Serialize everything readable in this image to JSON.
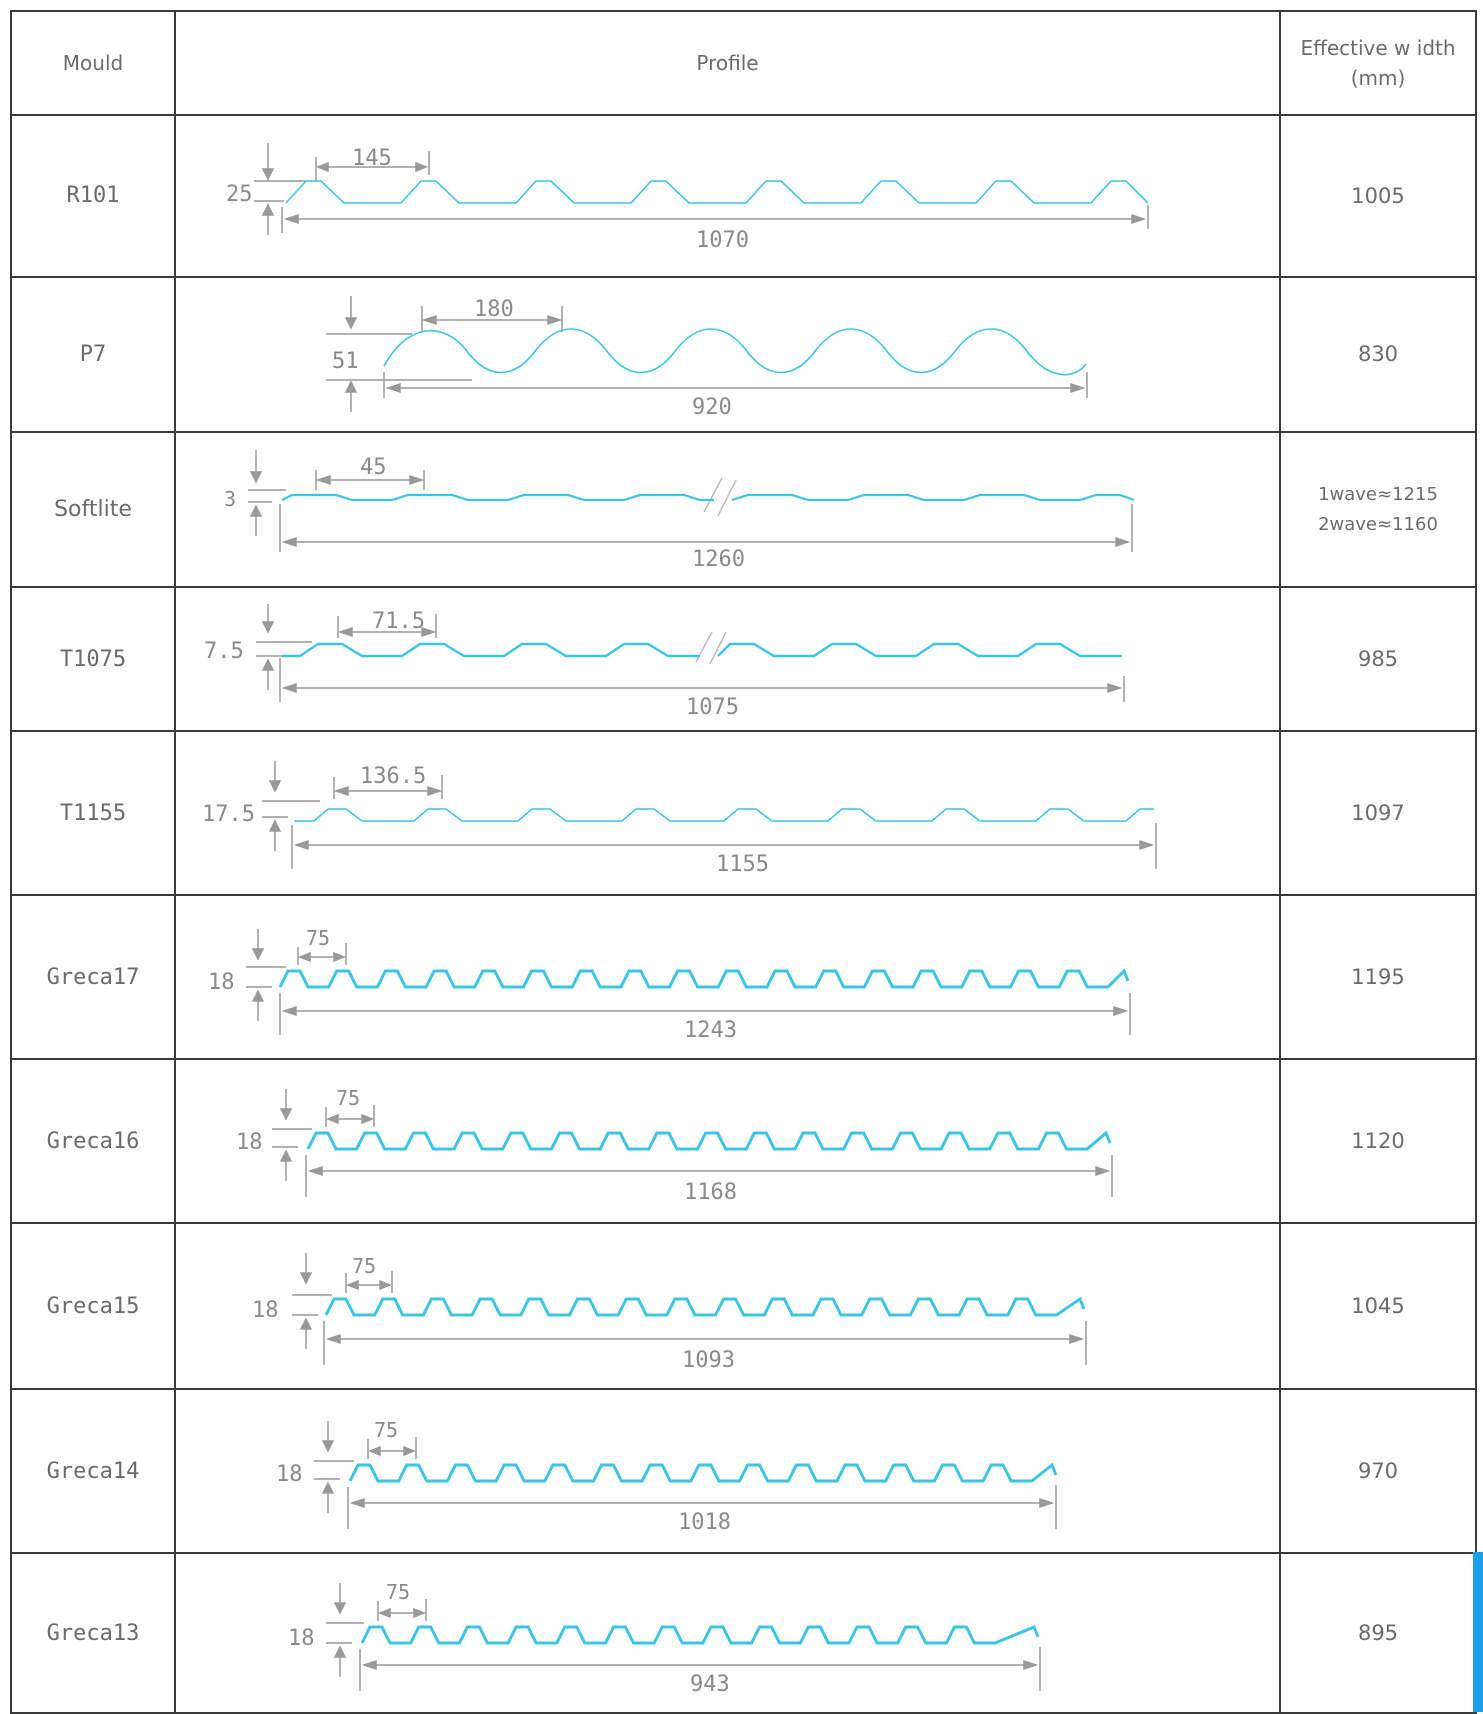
{
  "header": {
    "mould": "Mould",
    "profile": "Profile",
    "width_line1": "Effective w idth",
    "width_line2": "(mm)"
  },
  "rows": [
    {
      "mould": "R101",
      "width": "1005",
      "height": "25",
      "pitch": "145",
      "total": "1070"
    },
    {
      "mould": "P7",
      "width": "830",
      "height": "51",
      "pitch": "180",
      "total": "920"
    },
    {
      "mould": "Softlite",
      "width_line1": "1wave≈1215",
      "width_line2": "2wave≈1160",
      "height": "3",
      "pitch": "45",
      "total": "1260"
    },
    {
      "mould": "T1075",
      "width": "985",
      "height": "7.5",
      "pitch": "71.5",
      "total": "1075"
    },
    {
      "mould": "T1155",
      "width": "1097",
      "height": "17.5",
      "pitch": "136.5",
      "total": "1155"
    },
    {
      "mould": "Greca17",
      "width": "1195",
      "height": "18",
      "pitch": "75",
      "total": "1243"
    },
    {
      "mould": "Greca16",
      "width": "1120",
      "height": "18",
      "pitch": "75",
      "total": "1168"
    },
    {
      "mould": "Greca15",
      "width": "1045",
      "height": "18",
      "pitch": "75",
      "total": "1093"
    },
    {
      "mould": "Greca14",
      "width": "970",
      "height": "18",
      "pitch": "75",
      "total": "1018"
    },
    {
      "mould": "Greca13",
      "width": "895",
      "height": "18",
      "pitch": "75",
      "total": "943"
    }
  ],
  "colors": {
    "profile_line": "#3cc4e4",
    "dimension_line": "#999999",
    "border": "#3a3a3a"
  }
}
